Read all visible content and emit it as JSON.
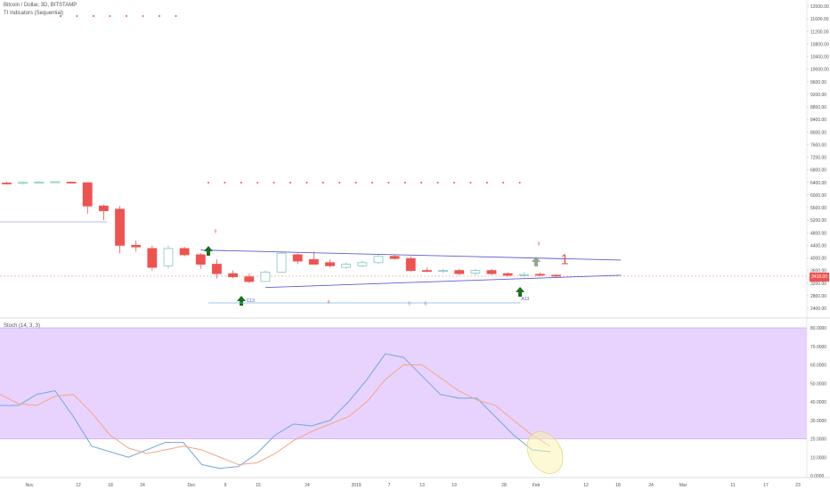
{
  "chart": {
    "title": "Bitcoin / Dollar, 3D, BITSTAMP",
    "indicator_label": "TI Indicators (Sequential)",
    "stoch_label": "Stoch (14, 3, 3)",
    "last_price_label": "3418.00",
    "colors": {
      "up": "#26a69a",
      "down": "#ef5350",
      "trend": "#5c5cd6",
      "stoch_k": "#6fa8dc",
      "stoch_d": "#f4a582",
      "band": "#e8d3ff"
    }
  },
  "chart_data": [
    {
      "type": "candlestick",
      "title": "Bitcoin / Dollar, 3D, BITSTAMP",
      "x_tick_labels": [
        "Nov",
        "12",
        "18",
        "24",
        "Dec",
        "9",
        "15",
        "24",
        "2019",
        "7",
        "13",
        "19",
        "28",
        "Feb",
        "12",
        "18",
        "24",
        "Mar",
        "11",
        "17",
        "23"
      ],
      "y_tick_labels": [
        "12000.00",
        "11600.00",
        "11200.00",
        "10800.00",
        "10400.00",
        "10000.00",
        "9600.00",
        "9200.00",
        "8800.00",
        "8400.00",
        "8000.00",
        "7600.00",
        "7200.00",
        "6800.00",
        "6400.00",
        "6000.00",
        "5600.00",
        "5200.00",
        "4800.00",
        "4400.00",
        "4000.00",
        "3600.00",
        "3200.00",
        "2800.00",
        "2400.00"
      ],
      "ylim": [
        2400,
        12000
      ],
      "candles": [
        {
          "o": 6380,
          "h": 6420,
          "l": 6340,
          "c": 6370
        },
        {
          "o": 6370,
          "h": 6420,
          "l": 6330,
          "c": 6400
        },
        {
          "o": 6400,
          "h": 6440,
          "l": 6380,
          "c": 6410
        },
        {
          "o": 6410,
          "h": 6440,
          "l": 6390,
          "c": 6420
        },
        {
          "o": 6410,
          "h": 6420,
          "l": 6380,
          "c": 6390
        },
        {
          "o": 6390,
          "h": 6400,
          "l": 5400,
          "c": 5650
        },
        {
          "o": 5650,
          "h": 5700,
          "l": 5200,
          "c": 5500
        },
        {
          "o": 5550,
          "h": 5650,
          "l": 4150,
          "c": 4400
        },
        {
          "o": 4400,
          "h": 4550,
          "l": 4200,
          "c": 4350
        },
        {
          "o": 4300,
          "h": 4400,
          "l": 3600,
          "c": 3700
        },
        {
          "o": 3750,
          "h": 4400,
          "l": 3650,
          "c": 4300
        },
        {
          "o": 4300,
          "h": 4350,
          "l": 4050,
          "c": 4100
        },
        {
          "o": 4100,
          "h": 4150,
          "l": 3650,
          "c": 3800
        },
        {
          "o": 3800,
          "h": 3950,
          "l": 3350,
          "c": 3500
        },
        {
          "o": 3500,
          "h": 3600,
          "l": 3350,
          "c": 3400
        },
        {
          "o": 3400,
          "h": 3500,
          "l": 3200,
          "c": 3250
        },
        {
          "o": 3250,
          "h": 3600,
          "l": 3250,
          "c": 3550
        },
        {
          "o": 3550,
          "h": 4200,
          "l": 3550,
          "c": 4150
        },
        {
          "o": 4100,
          "h": 4150,
          "l": 3800,
          "c": 3900
        },
        {
          "o": 3950,
          "h": 4200,
          "l": 3800,
          "c": 3800
        },
        {
          "o": 3850,
          "h": 3950,
          "l": 3700,
          "c": 3750
        },
        {
          "o": 3700,
          "h": 3850,
          "l": 3650,
          "c": 3800
        },
        {
          "o": 3750,
          "h": 3900,
          "l": 3700,
          "c": 3850
        },
        {
          "o": 3850,
          "h": 4100,
          "l": 3800,
          "c": 4050
        },
        {
          "o": 4050,
          "h": 4100,
          "l": 3950,
          "c": 3980
        },
        {
          "o": 3980,
          "h": 4050,
          "l": 3550,
          "c": 3600
        },
        {
          "o": 3600,
          "h": 3700,
          "l": 3550,
          "c": 3580
        },
        {
          "o": 3580,
          "h": 3650,
          "l": 3520,
          "c": 3600
        },
        {
          "o": 3600,
          "h": 3650,
          "l": 3450,
          "c": 3500
        },
        {
          "o": 3520,
          "h": 3650,
          "l": 3450,
          "c": 3600
        },
        {
          "o": 3600,
          "h": 3650,
          "l": 3450,
          "c": 3500
        },
        {
          "o": 3500,
          "h": 3550,
          "l": 3400,
          "c": 3450
        },
        {
          "o": 3450,
          "h": 3550,
          "l": 3400,
          "c": 3470
        },
        {
          "o": 3480,
          "h": 3530,
          "l": 3420,
          "c": 3450
        },
        {
          "o": 3450,
          "h": 3480,
          "l": 3400,
          "c": 3420
        }
      ],
      "annotations": [
        {
          "text": "9",
          "candle": 13,
          "price": 4800,
          "color": "#ef5350"
        },
        {
          "text": "C13",
          "candle": 15,
          "price": 2600,
          "color": "#5c5cd6"
        },
        {
          "text": "4",
          "candle": 20,
          "price": 2550,
          "color": "#ef5350"
        },
        {
          "text": "5",
          "candle": 25,
          "price": 2500,
          "color": "#ef5350"
        },
        {
          "text": "6",
          "candle": 26,
          "price": 2500,
          "color": "#ef5350"
        },
        {
          "text": "A13",
          "candle": 32,
          "price": 2650,
          "color": "#5c5cd6"
        },
        {
          "text": "9",
          "candle": 33,
          "price": 4400,
          "color": "#ef5350"
        },
        {
          "text": "1",
          "candle": 34,
          "price": 3800,
          "color": "#ef5350"
        }
      ],
      "trend_lines": [
        {
          "from": [
            12,
            4250
          ],
          "to": [
            38,
            3930
          ]
        },
        {
          "from": [
            16,
            3060
          ],
          "to": [
            38,
            3450
          ]
        }
      ]
    },
    {
      "type": "line",
      "title": "Stoch (14, 3, 3)",
      "y_tick_labels": [
        "80.0000",
        "70.0000",
        "60.0000",
        "50.0000",
        "40.0000",
        "30.0000",
        "20.0000",
        "10.0000",
        "0.0000"
      ],
      "ylim": [
        0,
        80
      ],
      "band": [
        20,
        80
      ],
      "series": [
        {
          "values": [
            38,
            38,
            44,
            46,
            32,
            16,
            13,
            10,
            14,
            18,
            18,
            6,
            4,
            5,
            12,
            22,
            28,
            27,
            30,
            40,
            52,
            66,
            64,
            54,
            44,
            42,
            42,
            32,
            22,
            14,
            13
          ]
        },
        {
          "values": [
            44,
            39,
            38,
            43,
            44,
            34,
            22,
            15,
            12,
            14,
            16,
            14,
            10,
            6,
            7,
            12,
            19,
            24,
            28,
            32,
            40,
            52,
            60,
            60,
            53,
            46,
            41,
            38,
            30,
            22,
            16
          ]
        }
      ]
    }
  ]
}
